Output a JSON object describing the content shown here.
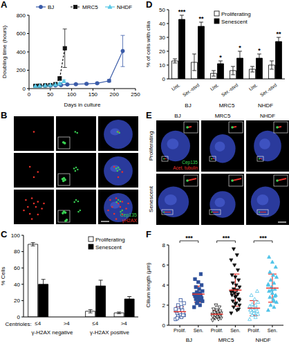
{
  "chart_data": [
    {
      "panel": "A",
      "type": "line",
      "x_label": "Days in culture",
      "y_label": "Doubling time (hours)",
      "xlim": [
        0,
        250
      ],
      "xticks": [
        0,
        50,
        100,
        150,
        200,
        250
      ],
      "ylim": [
        0,
        800
      ],
      "yticks": [
        0,
        200,
        400,
        600,
        800
      ],
      "legend": "top",
      "series": [
        {
          "name": "BJ",
          "color": "#3a5ba8",
          "marker": "circle",
          "line_style": "solid",
          "x": [
            15,
            25,
            38,
            50,
            62,
            75,
            90,
            110,
            135,
            160,
            188,
            220
          ],
          "values": [
            30,
            30,
            32,
            32,
            34,
            38,
            45,
            48,
            52,
            58,
            85,
            410
          ],
          "error": [
            4,
            4,
            5,
            5,
            5,
            6,
            6,
            8,
            8,
            10,
            15,
            170
          ]
        },
        {
          "name": "MRC5",
          "color": "#111111",
          "marker": "square",
          "line_style": "dashed",
          "x": [
            15,
            25,
            38,
            50,
            62,
            72,
            84
          ],
          "values": [
            30,
            32,
            35,
            38,
            48,
            110,
            440
          ],
          "error": [
            4,
            4,
            5,
            6,
            8,
            20,
            210
          ]
        },
        {
          "name": "NHDF",
          "color": "#5bc8e6",
          "marker": "triangle",
          "line_style": "solid",
          "x": [
            15,
            25,
            38,
            50,
            62,
            72,
            82
          ],
          "values": [
            28,
            30,
            33,
            38,
            44,
            55,
            80
          ],
          "error": [
            4,
            4,
            5,
            6,
            8,
            10,
            15
          ]
        }
      ]
    },
    {
      "panel": "C",
      "type": "bar",
      "x_label": "Centrioles:",
      "y_label": "% Cells",
      "categories": [
        "≤4",
        ">4",
        "≤4",
        ">4"
      ],
      "groups": [
        "γ-H2AX negative",
        "γ-H2AX positive"
      ],
      "ylim": [
        0,
        100
      ],
      "yticks": [
        0,
        20,
        40,
        60,
        80,
        100
      ],
      "legend": "top right",
      "series": [
        {
          "name": "Proliferating",
          "color": "#ffffff",
          "values": [
            89,
            0,
            7,
            5
          ],
          "error": [
            2,
            0,
            2,
            1
          ]
        },
        {
          "name": "Senescent",
          "color": "#000000",
          "values": [
            40,
            0,
            38,
            22
          ],
          "error": [
            6,
            0,
            7,
            3
          ]
        }
      ]
    },
    {
      "panel": "D",
      "type": "bar",
      "y_label": "% of cells with cilia",
      "categories": [
        "Unt.",
        "Ser.-stvd",
        "Unt.",
        "Ser.-stvd",
        "Unt.",
        "Ser.-stvd"
      ],
      "groups": [
        "BJ",
        "MRC5",
        "NHDF"
      ],
      "ylim": [
        0,
        50
      ],
      "yticks": [
        0,
        10,
        20,
        30,
        40,
        50
      ],
      "legend": "top",
      "series": [
        {
          "name": "Proliferating",
          "color": "#ffffff",
          "values": [
            13,
            12,
            4,
            6,
            7,
            10
          ],
          "error": [
            1.5,
            6,
            2,
            3,
            2,
            3
          ]
        },
        {
          "name": "Senescent",
          "color": "#000000",
          "values": [
            43,
            38,
            11,
            15,
            15,
            27
          ],
          "error": [
            3,
            3,
            2,
            5,
            3,
            3
          ],
          "significance": [
            "***",
            "**",
            "*",
            "*",
            "*",
            "**"
          ]
        }
      ]
    },
    {
      "panel": "F",
      "type": "scatter",
      "y_label": "Cilium length (µm)",
      "categories": [
        "Prolif.",
        "Sen."
      ],
      "ylim": [
        0,
        8
      ],
      "yticks": [
        0,
        2,
        4,
        6,
        8
      ],
      "series": [
        {
          "name": "BJ",
          "color": "#2d4f9a",
          "marker": "square",
          "significance": "***",
          "mean": [
            1.35,
            3.1
          ],
          "sd": [
            0.5,
            0.8
          ],
          "values": [
            [
              0.6,
              0.8,
              0.9,
              1.0,
              1.1,
              1.2,
              1.2,
              1.3,
              1.4,
              1.5,
              1.5,
              1.6,
              1.8,
              2.0,
              2.2,
              2.5,
              0.7,
              1.0
            ],
            [
              1.8,
              2.0,
              2.2,
              2.4,
              2.5,
              2.6,
              2.7,
              2.8,
              2.9,
              3.0,
              3.0,
              3.1,
              3.2,
              3.3,
              3.4,
              3.6,
              3.8,
              4.0,
              4.3,
              4.6,
              5.1,
              2.3
            ]
          ]
        },
        {
          "name": "MRC5",
          "color": "#111111",
          "marker": "triangle-down",
          "significance": "***",
          "mean": [
            1.1,
            3.5
          ],
          "sd": [
            0.35,
            1.6
          ],
          "values": [
            [
              0.5,
              0.6,
              0.7,
              0.7,
              0.8,
              0.8,
              0.9,
              0.9,
              1.0,
              1.0,
              1.0,
              1.1,
              1.1,
              1.2,
              1.2,
              1.3,
              1.3,
              1.4,
              1.5,
              1.6,
              1.8,
              2.0,
              0.9,
              1.1,
              1.0
            ],
            [
              1.2,
              1.5,
              1.8,
              2.0,
              2.2,
              2.4,
              2.6,
              2.8,
              3.0,
              3.1,
              3.2,
              3.3,
              3.5,
              3.6,
              3.8,
              4.0,
              4.2,
              4.5,
              4.8,
              5.0,
              5.5,
              6.0,
              6.5,
              7.0,
              7.6,
              2.5,
              2.9,
              3.4,
              1.6,
              2.1
            ]
          ]
        },
        {
          "name": "NHDF",
          "color": "#4fc3e8",
          "marker": "triangle",
          "significance": "***",
          "mean": [
            1.7,
            3.7
          ],
          "sd": [
            0.75,
            1.4
          ],
          "values": [
            [
              0.6,
              0.8,
              1.0,
              1.1,
              1.2,
              1.3,
              1.4,
              1.5,
              1.6,
              1.7,
              1.8,
              1.9,
              2.0,
              2.1,
              2.3,
              2.6,
              3.0,
              3.4,
              1.2,
              1.5
            ],
            [
              1.5,
              1.8,
              2.0,
              2.3,
              2.6,
              2.8,
              3.0,
              3.2,
              3.4,
              3.6,
              3.8,
              4.0,
              4.2,
              4.5,
              4.8,
              5.0,
              5.3,
              5.8,
              6.3,
              6.8,
              2.9,
              3.5,
              4.1,
              2.4
            ]
          ]
        }
      ]
    }
  ],
  "images": [
    {
      "panel": "B",
      "channels": [
        {
          "name": "Cep135",
          "color": "#39d353"
        },
        {
          "name": "γH2AX",
          "color": "#e8312a"
        }
      ]
    },
    {
      "panel": "E",
      "columns": [
        "BJ",
        "MRC5",
        "NHDF"
      ],
      "rows": [
        "Proliferating",
        "Senescent"
      ],
      "channels": [
        {
          "name": "Cep135",
          "color": "#39d353"
        },
        {
          "name": "Acet. tubulin",
          "color": "#e8312a"
        }
      ]
    }
  ]
}
